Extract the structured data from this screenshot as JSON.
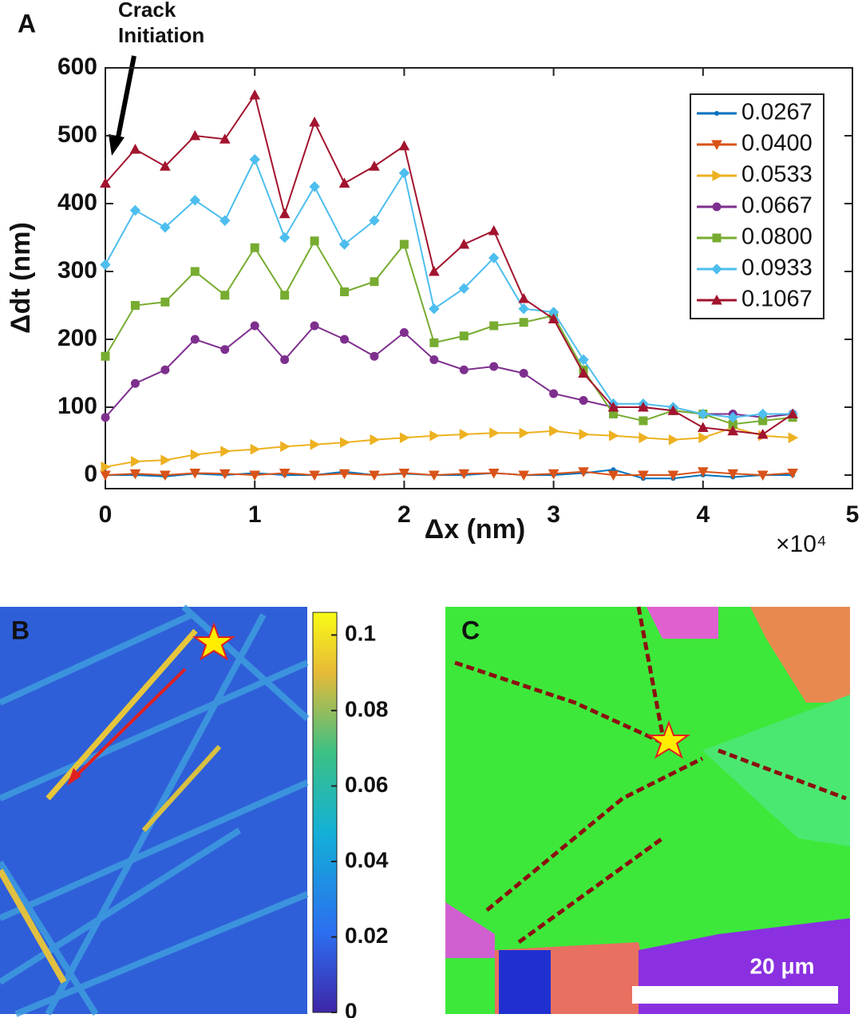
{
  "chart_data": {
    "type": "line",
    "panel_label": "A",
    "annotation": "Crack\nInitiation",
    "xlabel": "Δx (nm)",
    "ylabel": "Δdt (nm)",
    "x_multiplier": "×10⁴",
    "x": [
      0,
      2000,
      4000,
      6000,
      8000,
      10000,
      12000,
      14000,
      16000,
      18000,
      20000,
      22000,
      24000,
      26000,
      28000,
      30000,
      32000,
      34000,
      36000,
      38000,
      40000,
      42000,
      44000,
      46000
    ],
    "xlim": [
      0,
      50000
    ],
    "xticks": [
      {
        "value": 0,
        "label": "0"
      },
      {
        "value": 10000,
        "label": "1"
      },
      {
        "value": 20000,
        "label": "2"
      },
      {
        "value": 30000,
        "label": "3"
      },
      {
        "value": 40000,
        "label": "4"
      },
      {
        "value": 50000,
        "label": "5"
      }
    ],
    "ylim": [
      -20,
      600
    ],
    "yticks": [
      0,
      100,
      200,
      300,
      400,
      500,
      600
    ],
    "legend": "upper right",
    "series": [
      {
        "name": "0.0267",
        "color": "#0072bd",
        "marker": "dot",
        "values": [
          0,
          0,
          -2,
          2,
          0,
          3,
          0,
          0,
          5,
          0,
          2,
          0,
          0,
          3,
          0,
          0,
          3,
          8,
          -5,
          -5,
          0,
          -3,
          0,
          0
        ]
      },
      {
        "name": "0.0400",
        "color": "#d95319",
        "marker": "down",
        "values": [
          0,
          2,
          0,
          3,
          2,
          0,
          3,
          0,
          2,
          0,
          3,
          0,
          2,
          3,
          0,
          2,
          5,
          0,
          0,
          0,
          5,
          2,
          0,
          3
        ]
      },
      {
        "name": "0.0533",
        "color": "#edb120",
        "marker": "right",
        "values": [
          12,
          20,
          22,
          30,
          35,
          38,
          42,
          45,
          48,
          52,
          55,
          58,
          60,
          62,
          62,
          65,
          60,
          58,
          55,
          52,
          55,
          70,
          58,
          55
        ]
      },
      {
        "name": "0.0667",
        "color": "#7e2f8e",
        "marker": "circle",
        "values": [
          85,
          135,
          155,
          200,
          185,
          220,
          170,
          220,
          200,
          175,
          210,
          170,
          155,
          160,
          150,
          120,
          110,
          100,
          100,
          95,
          90,
          90,
          85,
          90
        ]
      },
      {
        "name": "0.0800",
        "color": "#77ac30",
        "marker": "square",
        "values": [
          175,
          250,
          255,
          300,
          265,
          335,
          265,
          345,
          270,
          285,
          340,
          195,
          205,
          220,
          225,
          235,
          155,
          90,
          80,
          95,
          90,
          75,
          80,
          85
        ]
      },
      {
        "name": "0.0933",
        "color": "#4dbeee",
        "marker": "diamond",
        "values": [
          310,
          390,
          365,
          405,
          375,
          465,
          350,
          425,
          340,
          375,
          445,
          245,
          275,
          320,
          245,
          240,
          170,
          105,
          105,
          100,
          90,
          85,
          90,
          90
        ]
      },
      {
        "name": "0.1067",
        "color": "#a2142f",
        "marker": "up",
        "values": [
          430,
          480,
          455,
          500,
          495,
          560,
          385,
          520,
          430,
          455,
          485,
          300,
          340,
          360,
          260,
          230,
          150,
          100,
          100,
          95,
          70,
          65,
          60,
          90
        ]
      }
    ]
  },
  "panel_b": {
    "label": "B",
    "colorbar": {
      "ylim": [
        0,
        0.106
      ],
      "yticks": [
        0,
        0.02,
        0.04,
        0.06,
        0.08,
        0.1
      ]
    }
  },
  "panel_c": {
    "label": "C",
    "scale_bar": "20 μm"
  }
}
